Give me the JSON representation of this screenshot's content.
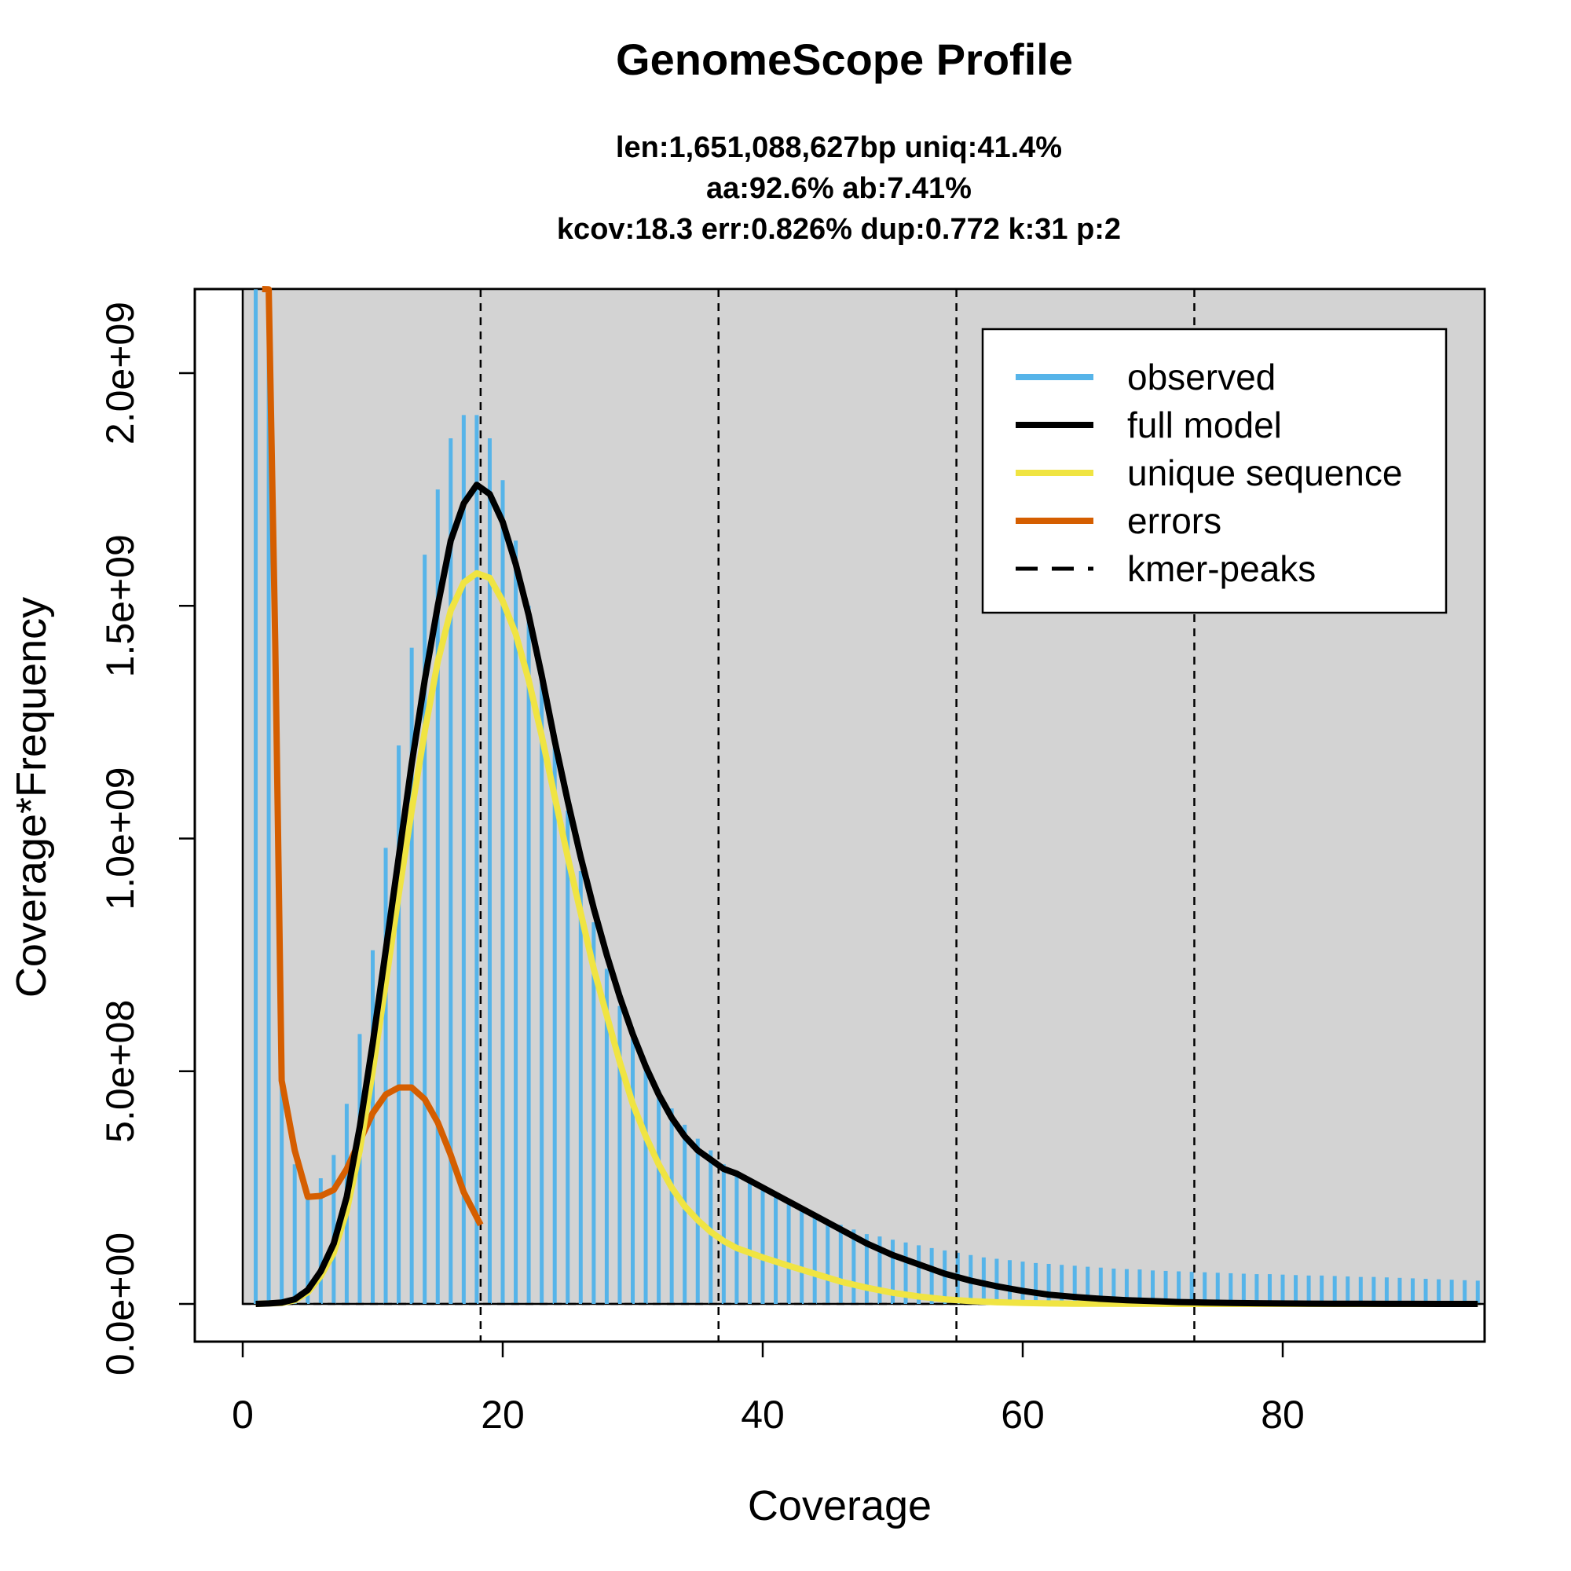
{
  "chart_data": {
    "type": "line",
    "title": "GenomeScope Profile",
    "subtitle_lines": [
      "len:1,651,088,627bp uniq:41.4%",
      "aa:92.6% ab:7.41%",
      "kcov:18.3 err:0.826%  dup:0.772  k:31 p:2"
    ],
    "xlabel": "Coverage",
    "ylabel": "Coverage*Frequency",
    "xlim": [
      0,
      95
    ],
    "ylim": [
      0,
      2180000000
    ],
    "x_ticks": [
      0,
      20,
      40,
      60,
      80
    ],
    "x_tick_labels": [
      "0",
      "20",
      "40",
      "60",
      "80"
    ],
    "y_ticks": [
      0,
      500000000,
      1000000000,
      1500000000,
      2000000000
    ],
    "y_tick_labels": [
      "0.0e+00",
      "5.0e+08",
      "1.0e+09",
      "1.5e+09",
      "2.0e+09"
    ],
    "grid": false,
    "background": "#d3d3d3",
    "legend_position": "top-right",
    "legend": [
      {
        "label": "observed",
        "color": "#56b4e9",
        "style": "solid"
      },
      {
        "label": "full model",
        "color": "#000000",
        "style": "solid"
      },
      {
        "label": "unique sequence",
        "color": "#f0e442",
        "style": "solid"
      },
      {
        "label": "errors",
        "color": "#d55e00",
        "style": "solid"
      },
      {
        "label": "kmer-peaks",
        "color": "#000000",
        "style": "dashed"
      }
    ],
    "kmer_peaks": [
      18.3,
      36.6,
      54.9,
      73.2
    ],
    "observed": {
      "name": "observed",
      "color": "#56b4e9",
      "x": [
        1,
        2,
        3,
        4,
        5,
        6,
        7,
        8,
        9,
        10,
        11,
        12,
        13,
        14,
        15,
        16,
        17,
        18,
        19,
        20,
        21,
        22,
        23,
        24,
        25,
        26,
        27,
        28,
        29,
        30,
        31,
        32,
        33,
        34,
        35,
        36,
        37,
        38,
        39,
        40,
        41,
        42,
        43,
        44,
        45,
        46,
        47,
        48,
        49,
        50,
        51,
        52,
        53,
        54,
        55,
        56,
        57,
        58,
        59,
        60,
        61,
        62,
        63,
        64,
        65,
        66,
        67,
        68,
        69,
        70,
        71,
        72,
        73,
        74,
        75,
        76,
        77,
        78,
        79,
        80,
        81,
        82,
        83,
        84,
        85,
        86,
        87,
        88,
        89,
        90,
        91,
        92,
        93,
        94,
        95
      ],
      "values": [
        2180000000,
        2180000000,
        480000000,
        300000000,
        230000000,
        270000000,
        320000000,
        430000000,
        580000000,
        760000000,
        980000000,
        1200000000,
        1410000000,
        1610000000,
        1750000000,
        1860000000,
        1910000000,
        1910000000,
        1860000000,
        1770000000,
        1640000000,
        1500000000,
        1350000000,
        1200000000,
        1060000000,
        930000000,
        820000000,
        720000000,
        640000000,
        570000000,
        510000000,
        460000000,
        420000000,
        385000000,
        355000000,
        330000000,
        300000000,
        280000000,
        260000000,
        245000000,
        230000000,
        215000000,
        200000000,
        190000000,
        180000000,
        170000000,
        160000000,
        150000000,
        145000000,
        138000000,
        132000000,
        126000000,
        120000000,
        115000000,
        110000000,
        105000000,
        100000000,
        97000000,
        94000000,
        91000000,
        88000000,
        86000000,
        84000000,
        82000000,
        80000000,
        78000000,
        76000000,
        75000000,
        74000000,
        72000000,
        71000000,
        70000000,
        69000000,
        68000000,
        67000000,
        66000000,
        65000000,
        64000000,
        64000000,
        63000000,
        62000000,
        61000000,
        61000000,
        60000000,
        59000000,
        58000000,
        58000000,
        57000000,
        56000000,
        55000000,
        54000000,
        53000000,
        52000000,
        51000000,
        50000000
      ]
    },
    "series": [
      {
        "name": "full model",
        "color": "#000000",
        "x": [
          1,
          2,
          3,
          4,
          5,
          6,
          7,
          8,
          9,
          10,
          11,
          12,
          13,
          14,
          15,
          16,
          17,
          18,
          19,
          20,
          21,
          22,
          23,
          24,
          25,
          26,
          27,
          28,
          29,
          30,
          31,
          32,
          33,
          34,
          35,
          36,
          37,
          38,
          40,
          42,
          44,
          46,
          48,
          50,
          52,
          54,
          56,
          58,
          60,
          62,
          64,
          66,
          68,
          70,
          72,
          74,
          76,
          78,
          80,
          82,
          84,
          86,
          88,
          90,
          92,
          95
        ],
        "values": [
          0,
          1000000,
          3000000,
          10000000,
          30000000,
          70000000,
          130000000,
          230000000,
          380000000,
          560000000,
          760000000,
          960000000,
          1160000000,
          1340000000,
          1500000000,
          1640000000,
          1720000000,
          1760000000,
          1740000000,
          1680000000,
          1590000000,
          1480000000,
          1350000000,
          1210000000,
          1080000000,
          960000000,
          850000000,
          750000000,
          660000000,
          580000000,
          510000000,
          450000000,
          400000000,
          360000000,
          330000000,
          310000000,
          290000000,
          280000000,
          250000000,
          220000000,
          190000000,
          160000000,
          130000000,
          105000000,
          85000000,
          65000000,
          50000000,
          38000000,
          28000000,
          20000000,
          15000000,
          11000000,
          8000000,
          6000000,
          4000000,
          3000000,
          2000000,
          1500000,
          1000000,
          700000,
          500000,
          300000,
          200000,
          100000,
          50000,
          0
        ]
      },
      {
        "name": "unique sequence",
        "color": "#f0e442",
        "x": [
          1,
          2,
          3,
          4,
          5,
          6,
          7,
          8,
          9,
          10,
          11,
          12,
          13,
          14,
          15,
          16,
          17,
          18,
          19,
          20,
          21,
          22,
          23,
          24,
          25,
          26,
          27,
          28,
          29,
          30,
          31,
          32,
          33,
          34,
          35,
          36,
          37,
          38,
          40,
          42,
          44,
          46,
          48,
          50,
          52,
          54,
          56,
          58,
          60,
          62,
          64,
          66,
          68,
          70,
          72,
          74,
          76,
          78,
          80,
          82,
          84,
          86,
          88,
          90,
          92,
          95
        ],
        "values": [
          0,
          1000000,
          2000000,
          8000000,
          25000000,
          60000000,
          110000000,
          200000000,
          330000000,
          500000000,
          690000000,
          880000000,
          1060000000,
          1230000000,
          1380000000,
          1490000000,
          1550000000,
          1570000000,
          1560000000,
          1510000000,
          1440000000,
          1340000000,
          1220000000,
          1090000000,
          960000000,
          840000000,
          720000000,
          620000000,
          520000000,
          430000000,
          360000000,
          300000000,
          250000000,
          210000000,
          180000000,
          155000000,
          135000000,
          120000000,
          100000000,
          82000000,
          65000000,
          48000000,
          35000000,
          24000000,
          16000000,
          10000000,
          6000000,
          3500000,
          2000000,
          1000000,
          500000,
          300000,
          200000,
          100000,
          50000,
          20000,
          10000,
          5000,
          0,
          0,
          0,
          0,
          0,
          0,
          0,
          0
        ]
      },
      {
        "name": "errors",
        "color": "#d55e00",
        "x": [
          1.5,
          2,
          2.5,
          3,
          4,
          5,
          6,
          7,
          8,
          9,
          10,
          11,
          12,
          13,
          14,
          15,
          16,
          17,
          18.3
        ],
        "values": [
          2500000000,
          2180000000,
          1420000000,
          480000000,
          330000000,
          230000000,
          232000000,
          245000000,
          290000000,
          350000000,
          410000000,
          450000000,
          465000000,
          465000000,
          440000000,
          390000000,
          320000000,
          240000000,
          170000000
        ]
      }
    ]
  }
}
